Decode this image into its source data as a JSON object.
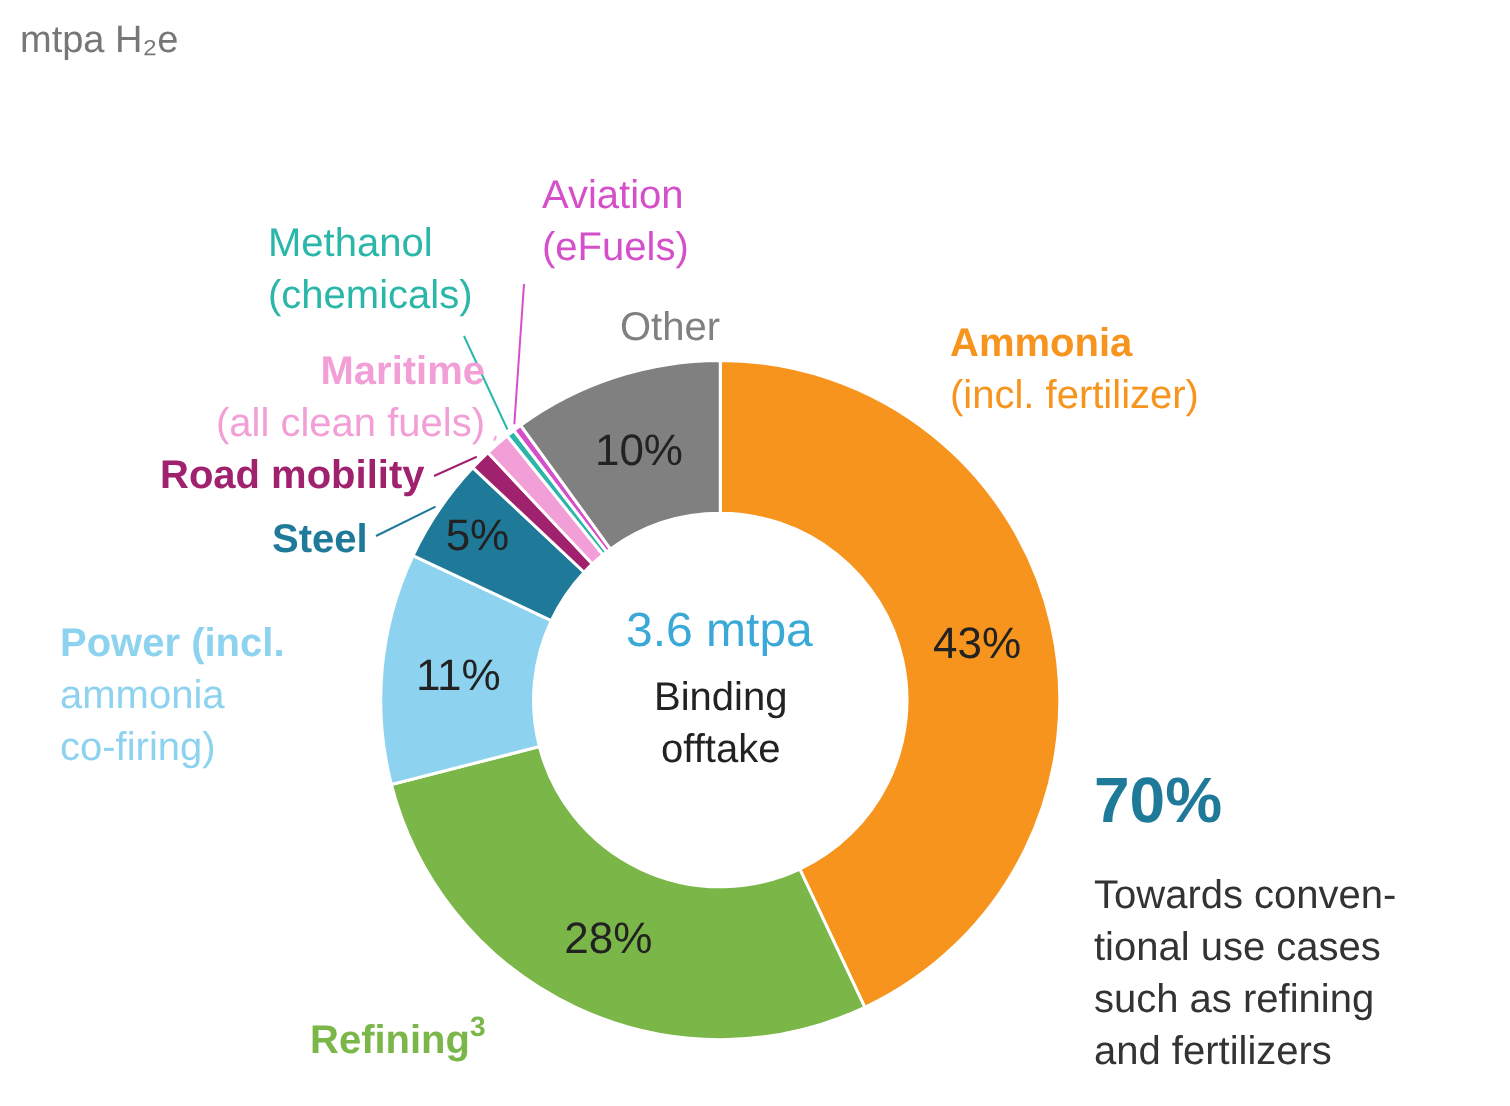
{
  "chart_data": {
    "type": "donut",
    "categories": [
      "Ammonia\n(incl. fertilizer)",
      "Refining$^{3}$",
      "Power (incl.\nammonia\nco-firing)",
      "Steel",
      "Road mobility",
      "Maritime\n(all clean fuels)",
      "Methanol\n(chemicals)",
      "Aviation\n(eFuels)",
      "Other"
    ],
    "values": [
      43,
      28,
      11,
      5,
      1,
      1.2,
      0.4,
      0.4,
      10
    ],
    "colors": [
      "#f7941d",
      "#7ab648",
      "#8dd3f0",
      "#1f7a99",
      "#a0226e",
      "#f29fd8",
      "#2ab7a9",
      "#d44fc9",
      "#808080"
    ],
    "value_labels": [
      "43%",
      "28%",
      "11%",
      "5%",
      null,
      null,
      null,
      null,
      "10%"
    ],
    "legend": false,
    "annotations": [
      "mtpa H₂e",
      "3.6 mtpa",
      "Binding\nofftake",
      "70%",
      "Towards conven-\ntional use cases\nsuch as refining\nand fertilizers"
    ]
  }
}
